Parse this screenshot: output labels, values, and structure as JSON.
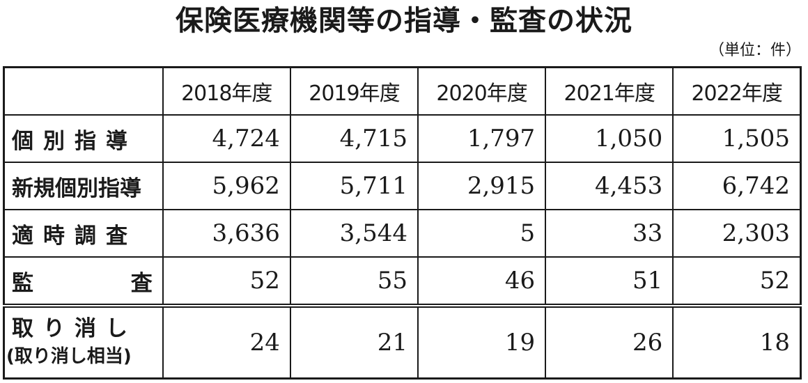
{
  "title": "保険医療機関等の指導・監査の状況",
  "unit": "（単位：件）",
  "table": {
    "headers": [
      "",
      "2018年度",
      "2019年度",
      "2020年度",
      "2021年度",
      "2022年度"
    ],
    "rows": [
      {
        "label": "個別指導",
        "values": [
          "4,724",
          "4,715",
          "1,797",
          "1,050",
          "1,505"
        ]
      },
      {
        "label": "新規個別指導",
        "values": [
          "5,962",
          "5,711",
          "2,915",
          "4,453",
          "6,742"
        ]
      },
      {
        "label": "適時調査",
        "values": [
          "3,636",
          "3,544",
          "5",
          "33",
          "2,303"
        ]
      },
      {
        "label_a": "監",
        "label_b": "査",
        "values": [
          "52",
          "55",
          "46",
          "51",
          "52"
        ]
      },
      {
        "label": "取り消し",
        "sublabel": "(取り消し相当)",
        "values": [
          "24",
          "21",
          "19",
          "26",
          "18"
        ]
      }
    ]
  }
}
